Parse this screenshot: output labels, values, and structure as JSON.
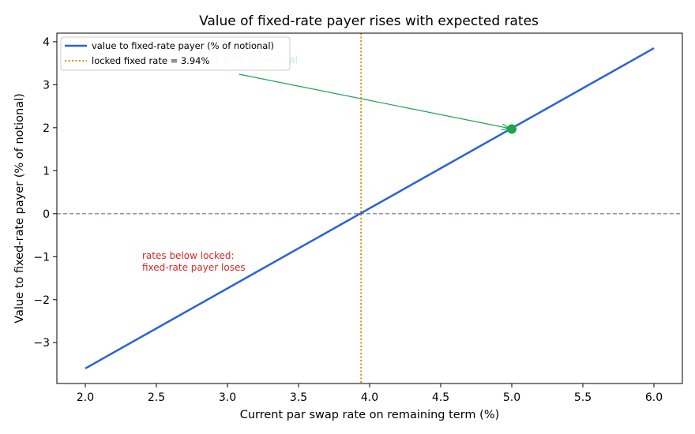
{
  "chart_data": {
    "type": "line",
    "title": "Value of fixed-rate payer rises with expected rates",
    "xlabel": "Current par swap rate on remaining term (%)",
    "ylabel": "Value to fixed-rate payer (% of notional)",
    "xlim": [
      1.8,
      6.2
    ],
    "ylim": [
      -3.95,
      4.2
    ],
    "xticks": [
      2.0,
      2.5,
      3.0,
      3.5,
      4.0,
      4.5,
      5.0,
      5.5,
      6.0
    ],
    "xtick_labels": [
      "2.0",
      "2.5",
      "3.0",
      "3.5",
      "4.0",
      "4.5",
      "5.0",
      "5.5",
      "6.0"
    ],
    "yticks": [
      -3,
      -2,
      -1,
      0,
      1,
      2,
      3,
      4
    ],
    "ytick_labels": [
      "−3",
      "−2",
      "−1",
      "0",
      "1",
      "2",
      "3",
      "4"
    ],
    "grid": false,
    "legend_position": "top-left",
    "series": [
      {
        "name": "value to fixed-rate payer (% of notional)",
        "color": "#2962d9",
        "style": "solid",
        "x": [
          2.0,
          6.0
        ],
        "y": [
          -3.6,
          3.85
        ]
      }
    ],
    "vertical_line": {
      "name": "locked fixed rate = 3.94%",
      "x": 3.94,
      "color": "#d4920a",
      "style": "dotted"
    },
    "horizontal_line": {
      "y": 0,
      "color": "#6b6f8a",
      "style": "dashed"
    },
    "highlight_point": {
      "x": 5.0,
      "y": 1.97,
      "color": "#1aa64a"
    },
    "annotations": [
      {
        "id": "arrow-annotation",
        "text": "+1.97% of notional",
        "x": 2.85,
        "y": 3.5,
        "color": "#c8eed6",
        "arrow_to": [
          5.0,
          1.97
        ],
        "arrow_color": "#1aa64a"
      },
      {
        "id": "loss-annotation",
        "lines": [
          "rates below locked:",
          "fixed-rate payer loses"
        ],
        "x": 2.4,
        "y": -1.05,
        "color": "#d62728"
      }
    ]
  }
}
